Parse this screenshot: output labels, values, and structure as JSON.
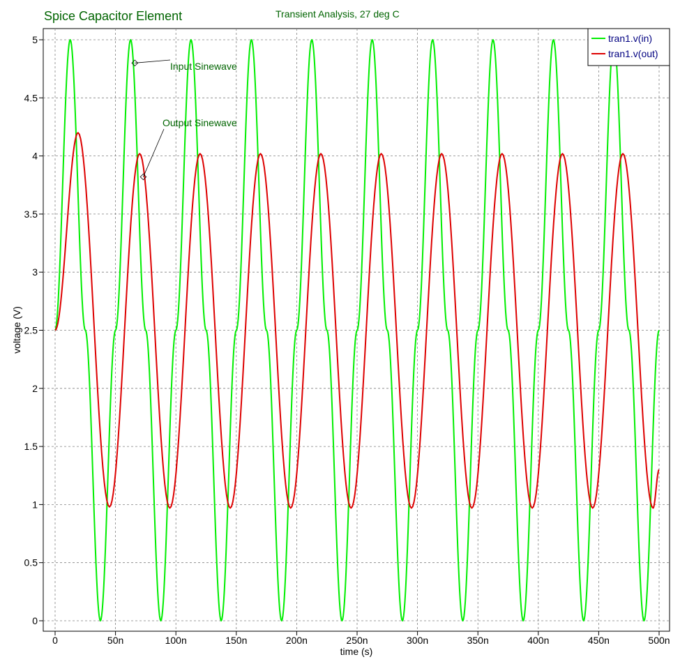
{
  "colors": {
    "input": "#00ee00",
    "output": "#dd0000",
    "title": "#006400",
    "legend_text": "#000080",
    "grid": "#808080",
    "annotation": "#006400"
  },
  "chart_data": {
    "type": "line",
    "title": "Spice Capacitor Element",
    "subtitle": "Transient Analysis, 27 deg C",
    "xlabel": "time (s)",
    "ylabel": "voltage (V)",
    "xlim": [
      0,
      500
    ],
    "x_unit": "ns",
    "ylim": [
      0,
      5
    ],
    "x_ticks": [
      0,
      50,
      100,
      150,
      200,
      250,
      300,
      350,
      400,
      450,
      500
    ],
    "x_tick_labels": [
      "0",
      "50n",
      "100n",
      "150n",
      "200n",
      "250n",
      "300n",
      "350n",
      "400n",
      "450n",
      "500n"
    ],
    "y_ticks": [
      0,
      0.5,
      1,
      1.5,
      2,
      2.5,
      3,
      3.5,
      4,
      4.5,
      5
    ],
    "y_tick_labels": [
      "0",
      "0.5",
      "1",
      "1.5",
      "2",
      "2.5",
      "3",
      "3.5",
      "4",
      "4.5",
      "5"
    ],
    "grid": true,
    "legend_position": "top-right",
    "series": [
      {
        "name": "tran1.v(in)",
        "color": "#00ee00",
        "x": [
          0,
          12.5,
          25,
          37.5,
          50,
          62.5,
          75,
          87.5,
          100,
          112.5,
          125,
          137.5,
          150,
          162.5,
          175,
          187.5,
          200,
          212.5,
          225,
          237.5,
          250,
          262.5,
          275,
          287.5,
          300,
          312.5,
          325,
          337.5,
          350,
          362.5,
          375,
          387.5,
          400,
          412.5,
          425,
          437.5,
          450,
          462.5,
          475,
          487.5,
          500
        ],
        "y": [
          2.5,
          5,
          2.5,
          0,
          2.5,
          5,
          2.5,
          0,
          2.5,
          5,
          2.5,
          0,
          2.5,
          5,
          2.5,
          0,
          2.5,
          5,
          2.5,
          0,
          2.5,
          5,
          2.5,
          0,
          2.5,
          5,
          2.5,
          0,
          2.5,
          5,
          2.5,
          0,
          2.5,
          5,
          2.5,
          0,
          2.5,
          5,
          2.5,
          0,
          2.5
        ]
      },
      {
        "name": "tran1.v(out)",
        "color": "#dd0000",
        "x": [
          0,
          19,
          45,
          70,
          95,
          120,
          145,
          170,
          195,
          220,
          245,
          270,
          295,
          320,
          345,
          370,
          395,
          420,
          445,
          470,
          495,
          500
        ],
        "y": [
          2.5,
          4.2,
          0.98,
          4.02,
          0.97,
          4.02,
          0.97,
          4.02,
          0.97,
          4.02,
          0.97,
          4.02,
          0.97,
          4.02,
          0.97,
          4.02,
          0.97,
          4.02,
          0.97,
          4.02,
          0.97,
          1.3
        ]
      }
    ],
    "annotations": [
      {
        "text": "Input Sinewave",
        "x": 66,
        "y": 4.8
      },
      {
        "text": "Output Sinewave",
        "x": 73,
        "y": 3.82
      }
    ]
  }
}
